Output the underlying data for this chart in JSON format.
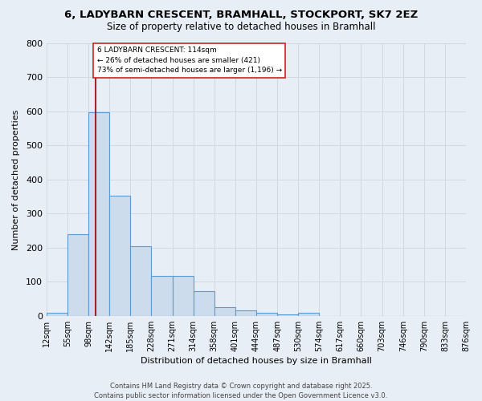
{
  "title": "6, LADYBARN CRESCENT, BRAMHALL, STOCKPORT, SK7 2EZ",
  "subtitle": "Size of property relative to detached houses in Bramhall",
  "xlabel": "Distribution of detached houses by size in Bramhall",
  "ylabel": "Number of detached properties",
  "bin_labels": [
    "12sqm",
    "55sqm",
    "98sqm",
    "142sqm",
    "185sqm",
    "228sqm",
    "271sqm",
    "314sqm",
    "358sqm",
    "401sqm",
    "444sqm",
    "487sqm",
    "530sqm",
    "574sqm",
    "617sqm",
    "660sqm",
    "703sqm",
    "746sqm",
    "790sqm",
    "833sqm",
    "876sqm"
  ],
  "bar_heights": [
    8,
    240,
    598,
    352,
    205,
    117,
    117,
    72,
    25,
    17,
    8,
    5,
    10,
    0,
    0,
    0,
    0,
    0,
    0,
    0
  ],
  "bar_facecolor": "#ccdcec",
  "bar_edgecolor": "#5b9bd5",
  "grid_color": "#d0d8e4",
  "bg_color": "#e8eef6",
  "vline_color": "#aa2222",
  "vline_bin": 2,
  "annotation_text": "6 LADYBARN CRESCENT: 114sqm\n← 26% of detached houses are smaller (421)\n73% of semi-detached houses are larger (1,196) →",
  "annotation_box_color": "#ffffff",
  "annotation_box_edgecolor": "#cc2222",
  "footer_text": "Contains HM Land Registry data © Crown copyright and database right 2025.\nContains public sector information licensed under the Open Government Licence v3.0.",
  "ylim": [
    0,
    800
  ],
  "yticks": [
    0,
    100,
    200,
    300,
    400,
    500,
    600,
    700,
    800
  ],
  "n_bins": 20,
  "num_ticks": 21
}
